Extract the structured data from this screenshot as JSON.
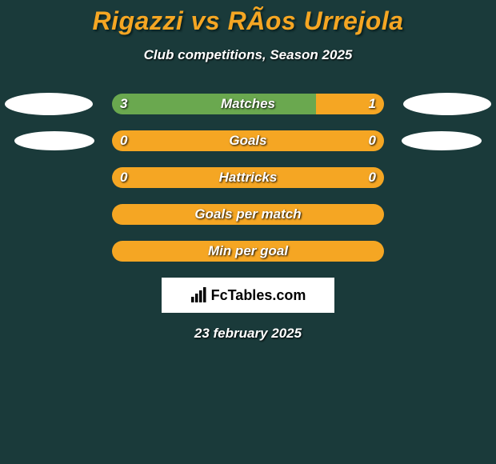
{
  "title": "Rigazzi vs RÃ­os Urrejola",
  "subtitle": "Club competitions, Season 2025",
  "date": "23 february 2025",
  "logo_text": "FcTables.com",
  "colors": {
    "accent": "#f5a623",
    "left_bar": "#6aa84f",
    "right_bar": "#f5a623",
    "neutral_bar": "#f5a623",
    "background": "#1a3a3a",
    "text": "#ffffff"
  },
  "rows": [
    {
      "label": "Matches",
      "left_val": "3",
      "right_val": "1",
      "left_pct": 75,
      "right_pct": 25,
      "left_color": "#6aa84f",
      "right_color": "#f5a623",
      "show_left_ellipse": "large",
      "show_right_ellipse": "large"
    },
    {
      "label": "Goals",
      "left_val": "0",
      "right_val": "0",
      "left_pct": 100,
      "right_pct": 0,
      "left_color": "#f5a623",
      "right_color": "#f5a623",
      "show_left_ellipse": "small",
      "show_right_ellipse": "small"
    },
    {
      "label": "Hattricks",
      "left_val": "0",
      "right_val": "0",
      "left_pct": 100,
      "right_pct": 0,
      "left_color": "#f5a623",
      "right_color": "#f5a623",
      "show_left_ellipse": "none",
      "show_right_ellipse": "none"
    },
    {
      "label": "Goals per match",
      "left_val": "",
      "right_val": "",
      "left_pct": 100,
      "right_pct": 0,
      "left_color": "#f5a623",
      "right_color": "#f5a623",
      "show_left_ellipse": "none",
      "show_right_ellipse": "none"
    },
    {
      "label": "Min per goal",
      "left_val": "",
      "right_val": "",
      "left_pct": 100,
      "right_pct": 0,
      "left_color": "#f5a623",
      "right_color": "#f5a623",
      "show_left_ellipse": "none",
      "show_right_ellipse": "none"
    }
  ]
}
